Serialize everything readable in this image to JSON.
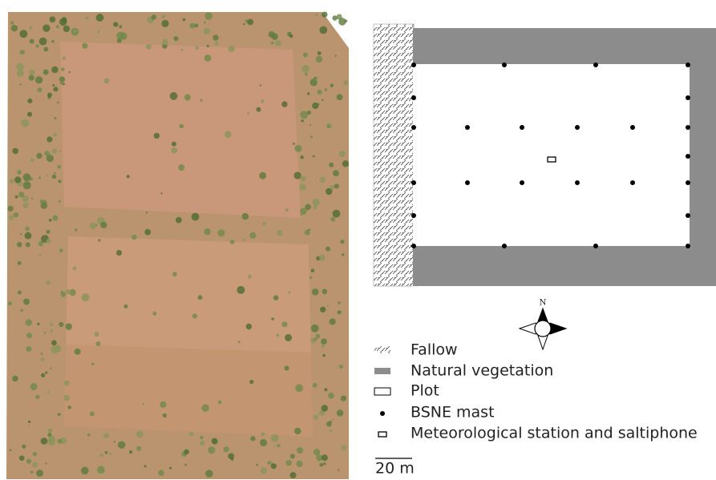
{
  "compass": {
    "label": "N"
  },
  "legend": [
    {
      "label": "Fallow"
    },
    {
      "label": "Natural vegetation"
    },
    {
      "label": "Plot"
    },
    {
      "label": "BSNE mast"
    },
    {
      "label": "Meteorological station and saltiphone"
    }
  ],
  "scale_bar": {
    "label": "20 m"
  }
}
